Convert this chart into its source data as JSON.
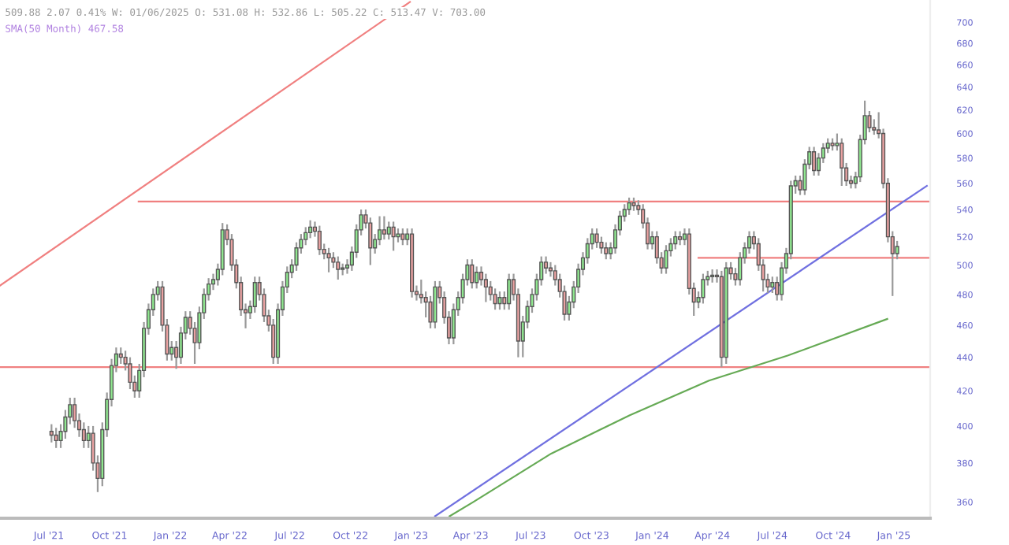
{
  "chart_data": {
    "type": "candlestick",
    "annotations": [
      "509.88 2.07 0.41% W: 01/06/2025 O: 531.08 H: 532.86 L: 505.22 C: 513.47 V: 703.00",
      "SMA(50 Month) 467.58"
    ],
    "x": [
      "2021-07-05",
      "2021-07-12",
      "2021-07-19",
      "2021-07-26",
      "2021-08-02",
      "2021-08-09",
      "2021-08-16",
      "2021-08-23",
      "2021-08-30",
      "2021-09-06",
      "2021-09-13",
      "2021-09-20",
      "2021-09-27",
      "2021-10-04",
      "2021-10-11",
      "2021-10-18",
      "2021-10-25",
      "2021-11-01",
      "2021-11-08",
      "2021-11-15",
      "2021-11-22",
      "2021-11-29",
      "2021-12-06",
      "2021-12-13",
      "2021-12-20",
      "2021-12-27",
      "2022-01-03",
      "2022-01-10",
      "2022-01-17",
      "2022-01-24",
      "2022-01-31",
      "2022-02-07",
      "2022-02-14",
      "2022-02-21",
      "2022-02-28",
      "2022-03-07",
      "2022-03-14",
      "2022-03-21",
      "2022-03-28",
      "2022-04-04",
      "2022-04-11",
      "2022-04-18",
      "2022-04-25",
      "2022-05-02",
      "2022-05-09",
      "2022-05-16",
      "2022-05-23",
      "2022-05-30",
      "2022-06-06",
      "2022-06-13",
      "2022-06-20",
      "2022-06-27",
      "2022-07-04",
      "2022-07-11",
      "2022-07-18",
      "2022-07-25",
      "2022-08-01",
      "2022-08-08",
      "2022-08-15",
      "2022-08-22",
      "2022-08-29",
      "2022-09-05",
      "2022-09-12",
      "2022-09-19",
      "2022-09-26",
      "2022-10-03",
      "2022-10-10",
      "2022-10-17",
      "2022-10-24",
      "2022-10-31",
      "2022-11-07",
      "2022-11-14",
      "2022-11-21",
      "2022-11-28",
      "2022-12-05",
      "2022-12-12",
      "2022-12-19",
      "2022-12-26",
      "2023-01-02",
      "2023-01-09",
      "2023-01-16",
      "2023-01-23",
      "2023-01-30",
      "2023-02-06",
      "2023-02-13",
      "2023-02-20",
      "2023-02-27",
      "2023-03-06",
      "2023-03-13",
      "2023-03-20",
      "2023-03-27",
      "2023-04-03",
      "2023-04-10",
      "2023-04-17",
      "2023-04-24",
      "2023-05-01",
      "2023-05-08",
      "2023-05-15",
      "2023-05-22",
      "2023-05-29",
      "2023-06-05",
      "2023-06-12",
      "2023-06-19",
      "2023-06-26",
      "2023-07-03",
      "2023-07-10",
      "2023-07-17",
      "2023-07-24",
      "2023-07-31",
      "2023-08-07",
      "2023-08-14",
      "2023-08-21",
      "2023-08-28",
      "2023-09-04",
      "2023-09-11",
      "2023-09-18",
      "2023-09-25",
      "2023-10-02",
      "2023-10-09",
      "2023-10-16",
      "2023-10-23",
      "2023-10-30",
      "2023-11-06",
      "2023-11-13",
      "2023-11-20",
      "2023-11-27",
      "2023-12-04",
      "2023-12-11",
      "2023-12-18",
      "2023-12-25",
      "2024-01-01",
      "2024-01-08",
      "2024-01-15",
      "2024-01-22",
      "2024-01-29",
      "2024-02-05",
      "2024-02-12",
      "2024-02-19",
      "2024-02-26",
      "2024-03-04",
      "2024-03-11",
      "2024-03-18",
      "2024-03-25",
      "2024-04-01",
      "2024-04-08",
      "2024-04-15",
      "2024-04-22",
      "2024-04-29",
      "2024-05-06",
      "2024-05-13",
      "2024-05-20",
      "2024-05-27",
      "2024-06-03",
      "2024-06-10",
      "2024-06-17",
      "2024-06-24",
      "2024-07-01",
      "2024-07-08",
      "2024-07-15",
      "2024-07-22",
      "2024-07-29",
      "2024-08-05",
      "2024-08-12",
      "2024-08-19",
      "2024-08-26",
      "2024-09-02",
      "2024-09-09",
      "2024-09-16",
      "2024-09-23",
      "2024-09-30",
      "2024-10-07",
      "2024-10-14",
      "2024-10-21",
      "2024-10-28",
      "2024-11-04",
      "2024-11-11",
      "2024-11-18",
      "2024-11-25",
      "2024-12-02",
      "2024-12-09",
      "2024-12-16",
      "2024-12-23",
      "2024-12-30",
      "2025-01-06"
    ],
    "ohlc": [
      [
        397,
        401,
        391,
        395
      ],
      [
        395,
        399,
        388,
        392
      ],
      [
        392,
        401,
        388,
        397
      ],
      [
        397,
        409,
        393,
        405
      ],
      [
        405,
        416,
        401,
        412
      ],
      [
        412,
        416,
        399,
        403
      ],
      [
        403,
        407,
        394,
        398
      ],
      [
        398,
        402,
        388,
        392
      ],
      [
        392,
        400,
        388,
        396
      ],
      [
        396,
        400,
        376,
        380
      ],
      [
        380,
        384,
        365,
        372
      ],
      [
        372,
        402,
        368,
        398
      ],
      [
        398,
        419,
        394,
        415
      ],
      [
        415,
        439,
        411,
        435
      ],
      [
        435,
        446,
        431,
        442
      ],
      [
        442,
        446,
        436,
        440
      ],
      [
        440,
        444,
        432,
        436
      ],
      [
        436,
        440,
        421,
        425
      ],
      [
        425,
        429,
        416,
        420
      ],
      [
        420,
        436,
        416,
        432
      ],
      [
        432,
        462,
        428,
        458
      ],
      [
        458,
        474,
        454,
        470
      ],
      [
        470,
        484,
        466,
        480
      ],
      [
        480,
        489,
        476,
        485
      ],
      [
        485,
        489,
        456,
        460
      ],
      [
        460,
        464,
        438,
        442
      ],
      [
        442,
        450,
        438,
        446
      ],
      [
        446,
        450,
        433,
        440
      ],
      [
        440,
        459,
        436,
        455
      ],
      [
        455,
        469,
        451,
        465
      ],
      [
        465,
        469,
        454,
        458
      ],
      [
        458,
        462,
        436,
        449
      ],
      [
        449,
        472,
        445,
        468
      ],
      [
        468,
        484,
        464,
        480
      ],
      [
        480,
        491,
        476,
        487
      ],
      [
        487,
        494,
        483,
        490
      ],
      [
        490,
        501,
        486,
        497
      ],
      [
        497,
        530,
        493,
        525
      ],
      [
        525,
        529,
        514,
        518
      ],
      [
        518,
        522,
        496,
        500
      ],
      [
        500,
        504,
        484,
        488
      ],
      [
        488,
        492,
        466,
        470
      ],
      [
        470,
        474,
        458,
        468
      ],
      [
        468,
        476,
        464,
        472
      ],
      [
        472,
        492,
        468,
        488
      ],
      [
        488,
        492,
        476,
        480
      ],
      [
        480,
        484,
        462,
        466
      ],
      [
        466,
        470,
        456,
        460
      ],
      [
        460,
        464,
        436,
        440
      ],
      [
        440,
        474,
        436,
        470
      ],
      [
        470,
        489,
        466,
        485
      ],
      [
        485,
        499,
        481,
        495
      ],
      [
        495,
        504,
        491,
        500
      ],
      [
        500,
        516,
        496,
        512
      ],
      [
        512,
        522,
        508,
        518
      ],
      [
        518,
        527,
        514,
        523
      ],
      [
        523,
        532,
        519,
        527
      ],
      [
        527,
        531,
        520,
        524
      ],
      [
        524,
        528,
        507,
        511
      ],
      [
        511,
        515,
        504,
        508
      ],
      [
        508,
        512,
        495,
        505
      ],
      [
        505,
        509,
        498,
        502
      ],
      [
        502,
        506,
        490,
        497
      ],
      [
        497,
        501,
        493,
        498
      ],
      [
        498,
        504,
        494,
        500
      ],
      [
        500,
        513,
        496,
        509
      ],
      [
        509,
        529,
        505,
        525
      ],
      [
        525,
        540,
        521,
        536
      ],
      [
        536,
        540,
        526,
        530
      ],
      [
        530,
        534,
        500,
        512
      ],
      [
        512,
        522,
        508,
        518
      ],
      [
        518,
        535,
        514,
        525
      ],
      [
        525,
        535,
        518,
        522
      ],
      [
        522,
        531,
        518,
        527
      ],
      [
        527,
        531,
        510,
        520
      ],
      [
        520,
        526,
        516,
        522
      ],
      [
        522,
        526,
        514,
        518
      ],
      [
        518,
        526,
        514,
        522
      ],
      [
        522,
        526,
        478,
        482
      ],
      [
        482,
        486,
        476,
        480
      ],
      [
        480,
        490,
        474,
        478
      ],
      [
        478,
        482,
        465,
        475
      ],
      [
        475,
        479,
        458,
        462
      ],
      [
        462,
        489,
        458,
        485
      ],
      [
        485,
        489,
        474,
        478
      ],
      [
        478,
        482,
        461,
        465
      ],
      [
        465,
        469,
        448,
        452
      ],
      [
        452,
        474,
        448,
        470
      ],
      [
        470,
        482,
        466,
        478
      ],
      [
        478,
        494,
        474,
        490
      ],
      [
        490,
        504,
        486,
        500
      ],
      [
        500,
        504,
        484,
        488
      ],
      [
        488,
        499,
        484,
        495
      ],
      [
        495,
        499,
        486,
        490
      ],
      [
        490,
        494,
        475,
        485
      ],
      [
        485,
        489,
        476,
        480
      ],
      [
        480,
        484,
        470,
        474
      ],
      [
        474,
        482,
        470,
        478
      ],
      [
        478,
        482,
        470,
        474
      ],
      [
        474,
        494,
        470,
        490
      ],
      [
        490,
        494,
        476,
        480
      ],
      [
        480,
        484,
        440,
        450
      ],
      [
        450,
        466,
        440,
        462
      ],
      [
        462,
        476,
        458,
        472
      ],
      [
        472,
        484,
        468,
        480
      ],
      [
        480,
        494,
        476,
        490
      ],
      [
        490,
        506,
        486,
        502
      ],
      [
        502,
        506,
        494,
        498
      ],
      [
        498,
        502,
        492,
        496
      ],
      [
        496,
        500,
        486,
        490
      ],
      [
        490,
        494,
        478,
        482
      ],
      [
        482,
        486,
        463,
        467
      ],
      [
        467,
        479,
        463,
        475
      ],
      [
        475,
        489,
        471,
        485
      ],
      [
        485,
        501,
        481,
        497
      ],
      [
        497,
        509,
        493,
        505
      ],
      [
        505,
        519,
        501,
        515
      ],
      [
        515,
        526,
        511,
        522
      ],
      [
        522,
        526,
        512,
        516
      ],
      [
        516,
        520,
        508,
        512
      ],
      [
        512,
        516,
        504,
        508
      ],
      [
        508,
        516,
        504,
        512
      ],
      [
        512,
        529,
        508,
        525
      ],
      [
        525,
        539,
        521,
        535
      ],
      [
        535,
        544,
        531,
        540
      ],
      [
        540,
        549,
        536,
        545
      ],
      [
        545,
        549,
        539,
        543
      ],
      [
        543,
        547,
        536,
        540
      ],
      [
        540,
        544,
        526,
        530
      ],
      [
        530,
        534,
        511,
        515
      ],
      [
        515,
        524,
        511,
        520
      ],
      [
        520,
        524,
        501,
        505
      ],
      [
        505,
        509,
        494,
        498
      ],
      [
        498,
        514,
        494,
        510
      ],
      [
        510,
        519,
        506,
        515
      ],
      [
        515,
        524,
        511,
        520
      ],
      [
        520,
        524,
        514,
        518
      ],
      [
        518,
        526,
        514,
        522
      ],
      [
        522,
        526,
        480,
        484
      ],
      [
        484,
        488,
        466,
        475
      ],
      [
        475,
        482,
        471,
        478
      ],
      [
        478,
        494,
        474,
        490
      ],
      [
        490,
        496,
        486,
        492
      ],
      [
        492,
        497,
        488,
        493
      ],
      [
        493,
        497,
        488,
        492
      ],
      [
        492,
        496,
        434,
        440
      ],
      [
        440,
        502,
        436,
        498
      ],
      [
        498,
        502,
        490,
        494
      ],
      [
        494,
        498,
        486,
        490
      ],
      [
        490,
        509,
        486,
        505
      ],
      [
        505,
        516,
        501,
        512
      ],
      [
        512,
        524,
        508,
        520
      ],
      [
        520,
        524,
        511,
        515
      ],
      [
        515,
        519,
        496,
        500
      ],
      [
        500,
        504,
        482,
        490
      ],
      [
        490,
        494,
        481,
        485
      ],
      [
        485,
        492,
        481,
        488
      ],
      [
        488,
        492,
        476,
        480
      ],
      [
        480,
        502,
        476,
        498
      ],
      [
        498,
        512,
        494,
        508
      ],
      [
        508,
        562,
        504,
        558
      ],
      [
        558,
        566,
        552,
        562
      ],
      [
        562,
        566,
        551,
        555
      ],
      [
        555,
        579,
        551,
        575
      ],
      [
        575,
        589,
        571,
        585
      ],
      [
        585,
        589,
        566,
        570
      ],
      [
        570,
        584,
        566,
        580
      ],
      [
        580,
        592,
        576,
        588
      ],
      [
        588,
        596,
        584,
        592
      ],
      [
        592,
        596,
        586,
        590
      ],
      [
        590,
        600,
        586,
        592
      ],
      [
        592,
        596,
        558,
        572
      ],
      [
        572,
        576,
        558,
        562
      ],
      [
        562,
        566,
        556,
        560
      ],
      [
        560,
        569,
        556,
        565
      ],
      [
        565,
        599,
        561,
        595
      ],
      [
        595,
        628,
        591,
        615
      ],
      [
        615,
        619,
        601,
        605
      ],
      [
        605,
        612,
        599,
        603
      ],
      [
        603,
        618,
        596,
        600
      ],
      [
        600,
        604,
        556,
        560
      ],
      [
        560,
        564,
        516,
        520
      ],
      [
        520,
        524,
        479,
        508
      ],
      [
        508,
        517,
        504,
        513
      ]
    ],
    "colors": [
      "#eaa2a2",
      "#eaa2a2",
      "#90e890",
      "#90e890",
      "#90e890",
      "#eaa2a2",
      "#eaa2a2",
      "#eaa2a2",
      "#90e890",
      "#eaa2a2",
      "#eaa2a2",
      "#90e890",
      "#90e890",
      "#90e890",
      "#90e890",
      "#eaa2a2",
      "#eaa2a2",
      "#eaa2a2",
      "#eaa2a2",
      "#90e890",
      "#90e890",
      "#90e890",
      "#90e890",
      "#90e890",
      "#eaa2a2",
      "#eaa2a2",
      "#90e890",
      "#eaa2a2",
      "#90e890",
      "#90e890",
      "#eaa2a2",
      "#eaa2a2",
      "#90e890",
      "#90e890",
      "#90e890",
      "#90e890",
      "#90e890",
      "#90e890",
      "#eaa2a2",
      "#eaa2a2",
      "#eaa2a2",
      "#eaa2a2",
      "#eaa2a2",
      "#90e890",
      "#90e890",
      "#eaa2a2",
      "#eaa2a2",
      "#eaa2a2",
      "#eaa2a2",
      "#90e890",
      "#90e890",
      "#90e890",
      "#90e890",
      "#90e890",
      "#90e890",
      "#90e890",
      "#90e890",
      "#eaa2a2",
      "#eaa2a2",
      "#eaa2a2",
      "#eaa2a2",
      "#eaa2a2",
      "#eaa2a2",
      "#90e890",
      "#90e890",
      "#90e890",
      "#90e890",
      "#90e890",
      "#eaa2a2",
      "#eaa2a2",
      "#90e890",
      "#90e890",
      "#eaa2a2",
      "#90e890",
      "#eaa2a2",
      "#90e890",
      "#eaa2a2",
      "#90e890",
      "#eaa2a2",
      "#eaa2a2",
      "#eaa2a2",
      "#eaa2a2",
      "#eaa2a2",
      "#90e890",
      "#eaa2a2",
      "#eaa2a2",
      "#eaa2a2",
      "#90e890",
      "#90e890",
      "#90e890",
      "#90e890",
      "#eaa2a2",
      "#90e890",
      "#eaa2a2",
      "#eaa2a2",
      "#eaa2a2",
      "#eaa2a2",
      "#90e890",
      "#eaa2a2",
      "#90e890",
      "#eaa2a2",
      "#eaa2a2",
      "#90e890",
      "#90e890",
      "#90e890",
      "#90e890",
      "#90e890",
      "#eaa2a2",
      "#eaa2a2",
      "#eaa2a2",
      "#eaa2a2",
      "#eaa2a2",
      "#90e890",
      "#90e890",
      "#90e890",
      "#90e890",
      "#90e890",
      "#90e890",
      "#eaa2a2",
      "#eaa2a2",
      "#eaa2a2",
      "#90e890",
      "#90e890",
      "#90e890",
      "#90e890",
      "#90e890",
      "#eaa2a2",
      "#eaa2a2",
      "#eaa2a2",
      "#eaa2a2",
      "#90e890",
      "#eaa2a2",
      "#eaa2a2",
      "#90e890",
      "#90e890",
      "#90e890",
      "#eaa2a2",
      "#90e890",
      "#eaa2a2",
      "#eaa2a2",
      "#90e890",
      "#90e890",
      "#90e890",
      "#90e890",
      "#eaa2a2",
      "#eaa2a2",
      "#90e890",
      "#eaa2a2",
      "#eaa2a2",
      "#90e890",
      "#90e890",
      "#90e890",
      "#eaa2a2",
      "#eaa2a2",
      "#eaa2a2",
      "#eaa2a2",
      "#90e890",
      "#eaa2a2",
      "#90e890",
      "#90e890",
      "#90e890",
      "#90e890",
      "#eaa2a2",
      "#90e890",
      "#90e890",
      "#eaa2a2",
      "#90e890",
      "#90e890",
      "#90e890",
      "#eaa2a2",
      "#90e890",
      "#eaa2a2",
      "#eaa2a2",
      "#eaa2a2",
      "#90e890",
      "#90e890",
      "#90e890",
      "#eaa2a2",
      "#eaa2a2",
      "#eaa2a2",
      "#eaa2a2",
      "#eaa2a2",
      "#eaa2a2",
      "#90e890"
    ],
    "series": [
      {
        "type": "line",
        "color": "#f08080",
        "x": [
          "2021-04-18",
          "2022-12-30"
        ],
        "values": [
          486,
          720
        ]
      },
      {
        "type": "line",
        "color": "#f08080",
        "x": [
          "2021-11-14",
          "2025-02-25"
        ],
        "values": [
          546,
          546
        ]
      },
      {
        "type": "line",
        "color": "#f08080",
        "x": [
          "2021-04-18",
          "2025-02-25"
        ],
        "values": [
          434,
          434
        ]
      },
      {
        "type": "line",
        "color": "#f08080",
        "x": [
          "2024-03-11",
          "2025-02-25"
        ],
        "values": [
          505,
          505
        ]
      },
      {
        "type": "line",
        "color": "#7070e0",
        "x": [
          "2023-02-06",
          "2025-02-20"
        ],
        "values": [
          353,
          558
        ]
      },
      {
        "type": "line",
        "color": "#66aa55",
        "x": [
          "2023-02-28",
          "2023-04-05",
          "2023-08-01",
          "2023-11-28",
          "2024-03-27",
          "2024-07-24",
          "2024-12-22"
        ],
        "values": [
          353,
          360,
          385,
          406,
          426,
          441,
          464
        ]
      }
    ],
    "log": true,
    "xlim": [
      "2021-04-18",
      "2025-02-25"
    ],
    "xticks": [
      {
        "value": "2021-07-01",
        "label": "Jul '21"
      },
      {
        "value": "2021-10-01",
        "label": "Oct '21"
      },
      {
        "value": "2022-01-01",
        "label": "Jan '22"
      },
      {
        "value": "2022-04-01",
        "label": "Apr '22"
      },
      {
        "value": "2022-07-01",
        "label": "Jul '22"
      },
      {
        "value": "2022-10-01",
        "label": "Oct '22"
      },
      {
        "value": "2023-01-01",
        "label": "Jan '23"
      },
      {
        "value": "2023-04-01",
        "label": "Apr '23"
      },
      {
        "value": "2023-07-01",
        "label": "Jul '23"
      },
      {
        "value": "2023-10-01",
        "label": "Oct '23"
      },
      {
        "value": "2024-01-01",
        "label": "Jan '24"
      },
      {
        "value": "2024-04-01",
        "label": "Apr '24"
      },
      {
        "value": "2024-07-01",
        "label": "Jul '24"
      },
      {
        "value": "2024-10-01",
        "label": "Oct '24"
      },
      {
        "value": "2025-01-01",
        "label": "Jan '25"
      }
    ],
    "ylim": [
      352,
      722
    ],
    "yticks": [
      360,
      380,
      400,
      420,
      440,
      460,
      480,
      500,
      520,
      540,
      560,
      580,
      600,
      620,
      640,
      660,
      680,
      700
    ],
    "grid": false,
    "legend": false
  }
}
